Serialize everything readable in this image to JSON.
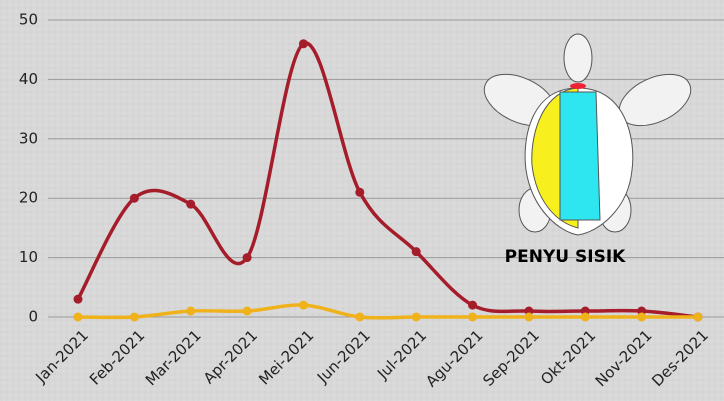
{
  "chart_data": {
    "type": "line",
    "annotation": "PENYU SISIK",
    "categories": [
      "Jan-2021",
      "Feb-2021",
      "Mar-2021",
      "Apr-2021",
      "Mei-2021",
      "Jun-2021",
      "Jul-2021",
      "Agu-2021",
      "Sep-2021",
      "Okt-2021",
      "Nov-2021",
      "Des-2021"
    ],
    "series": [
      {
        "color": "#a51c2b",
        "values": [
          3,
          20,
          19,
          10,
          46,
          21,
          11,
          2,
          1,
          1,
          1,
          0
        ]
      },
      {
        "color": "#f0b21a",
        "values": [
          0,
          0,
          1,
          1,
          2,
          0,
          0,
          0,
          0,
          0,
          0,
          0
        ]
      }
    ],
    "ylim": [
      0,
      50
    ],
    "yticks": [
      0,
      10,
      20,
      30,
      40,
      50
    ],
    "grid": true
  }
}
